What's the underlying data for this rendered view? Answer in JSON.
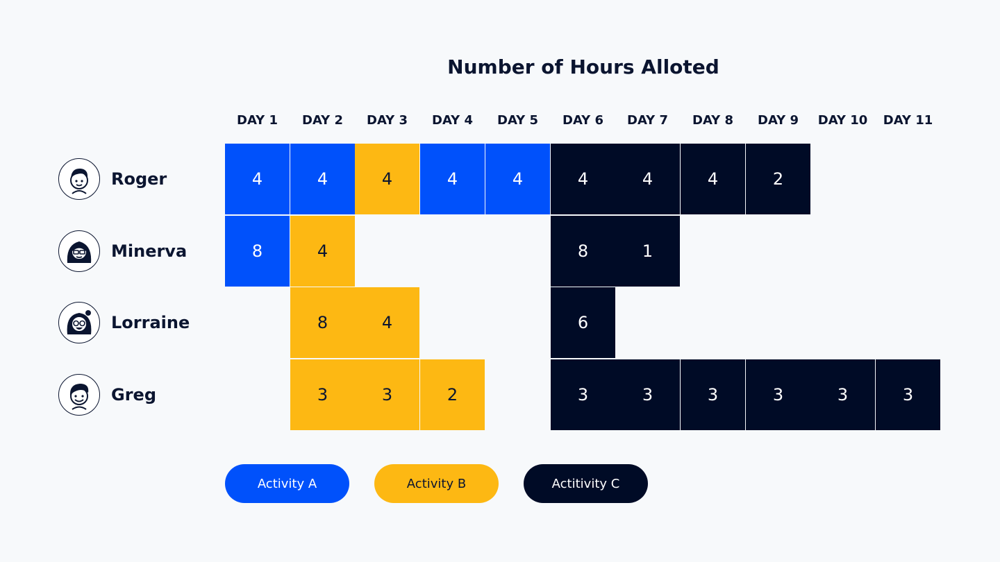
{
  "chart_data": {
    "type": "heatmap",
    "title": "Number of Hours Alloted",
    "days": [
      "DAY 1",
      "DAY 2",
      "DAY 3",
      "DAY 4",
      "DAY 5",
      "DAY 6",
      "DAY 7",
      "DAY 8",
      "DAY 9",
      "DAY 10",
      "DAY 11"
    ],
    "people": [
      {
        "name": "Roger",
        "avatar": "roger-avatar-icon",
        "cells": [
          {
            "day": 1,
            "hours": 4,
            "activity": "A"
          },
          {
            "day": 2,
            "hours": 4,
            "activity": "A"
          },
          {
            "day": 3,
            "hours": 4,
            "activity": "B"
          },
          {
            "day": 4,
            "hours": 4,
            "activity": "A"
          },
          {
            "day": 5,
            "hours": 4,
            "activity": "A"
          },
          {
            "day": 6,
            "hours": 4,
            "activity": "C"
          },
          {
            "day": 7,
            "hours": 4,
            "activity": "C"
          },
          {
            "day": 8,
            "hours": 4,
            "activity": "C"
          },
          {
            "day": 9,
            "hours": 2,
            "activity": "C"
          }
        ]
      },
      {
        "name": "Minerva",
        "avatar": "minerva-avatar-icon",
        "cells": [
          {
            "day": 1,
            "hours": 8,
            "activity": "A"
          },
          {
            "day": 2,
            "hours": 4,
            "activity": "B"
          },
          {
            "day": 6,
            "hours": 8,
            "activity": "C"
          },
          {
            "day": 7,
            "hours": 1,
            "activity": "C"
          }
        ]
      },
      {
        "name": "Lorraine",
        "avatar": "lorraine-avatar-icon",
        "cells": [
          {
            "day": 2,
            "hours": 8,
            "activity": "B"
          },
          {
            "day": 3,
            "hours": 4,
            "activity": "B"
          },
          {
            "day": 6,
            "hours": 6,
            "activity": "C"
          }
        ]
      },
      {
        "name": "Greg",
        "avatar": "greg-avatar-icon",
        "cells": [
          {
            "day": 2,
            "hours": 3,
            "activity": "B"
          },
          {
            "day": 3,
            "hours": 3,
            "activity": "B"
          },
          {
            "day": 4,
            "hours": 2,
            "activity": "B"
          },
          {
            "day": 6,
            "hours": 3,
            "activity": "C"
          },
          {
            "day": 7,
            "hours": 3,
            "activity": "C"
          },
          {
            "day": 8,
            "hours": 3,
            "activity": "C"
          },
          {
            "day": 9,
            "hours": 3,
            "activity": "C"
          },
          {
            "day": 10,
            "hours": 3,
            "activity": "C"
          },
          {
            "day": 11,
            "hours": 3,
            "activity": "C"
          }
        ]
      }
    ],
    "legend": [
      {
        "key": "A",
        "label": "Activity A",
        "color": "#0051fb",
        "text_color": "#ffffff"
      },
      {
        "key": "B",
        "label": "Activity B",
        "color": "#fdb813",
        "text_color": "#0b1530"
      },
      {
        "key": "C",
        "label": "Actitivity C",
        "color": "#000b26",
        "text_color": "#ffffff"
      }
    ]
  }
}
